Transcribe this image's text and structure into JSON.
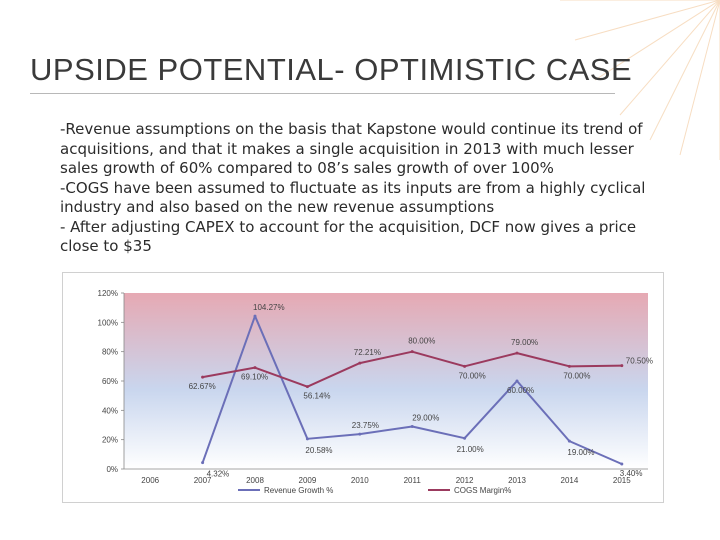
{
  "slide": {
    "title": "UPSIDE POTENTIAL- OPTIMISTIC CASE",
    "body_lines": [
      "-Revenue assumptions on the basis that Kapstone would continue its trend of",
      "acquisitions, and that it makes a single acquisition in 2013 with much lesser",
      "sales growth of 60% compared to 08’s sales growth of over 100%",
      "-COGS have been assumed to fluctuate as its inputs are from a highly cyclical",
      "industry and also based on the new revenue assumptions",
      "- After adjusting CAPEX to account for the acquisition, DCF now gives a price",
      "close to $35"
    ]
  },
  "colors": {
    "accent": "#e8a24a",
    "revenue_line": "#6b6fb8",
    "cogs_line": "#9b3a5e",
    "band_top": "#e6a9b3",
    "band_bottom": "#c9d6ee"
  },
  "chart_data": {
    "type": "line",
    "categories": [
      "2006",
      "2007",
      "2008",
      "2009",
      "2010",
      "2011",
      "2012",
      "2013",
      "2014",
      "2015"
    ],
    "ylim": [
      0,
      120
    ],
    "yticks": [
      "0%",
      "20%",
      "40%",
      "60%",
      "80%",
      "100%",
      "120%"
    ],
    "series": [
      {
        "name": "Revenue Growth %",
        "values": [
          null,
          4.32,
          104.27,
          20.58,
          23.75,
          29.0,
          21.0,
          60.0,
          19.0,
          3.4
        ],
        "labels": [
          null,
          "4.32%",
          "104.27%",
          "20.58%",
          "23.75%",
          "29.00%",
          "21.00%",
          "60.00%",
          "19.00%",
          "3.40%"
        ]
      },
      {
        "name": "COGS Margin%",
        "values": [
          null,
          62.67,
          69.1,
          56.14,
          72.21,
          80.0,
          70.0,
          79.0,
          70.0,
          70.5
        ],
        "labels": [
          null,
          "62.67%",
          "69.10%",
          "56.14%",
          "72.21%",
          "80.00%",
          "70.00%",
          "79.00%",
          "70.00%",
          "70.50%"
        ]
      }
    ],
    "legend_position": "bottom"
  }
}
